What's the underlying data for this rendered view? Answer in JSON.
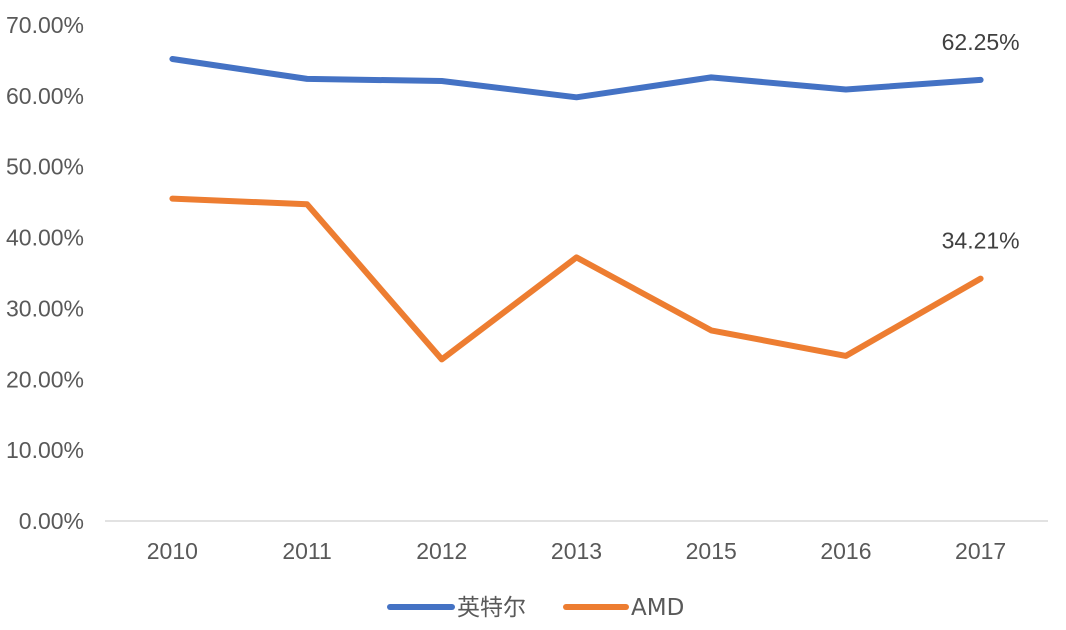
{
  "chart_data": {
    "type": "line",
    "title": "",
    "xlabel": "",
    "ylabel": "",
    "categories": [
      "2010",
      "2011",
      "2012",
      "2013",
      "2015",
      "2016",
      "2017"
    ],
    "yticks": [
      "0.00%",
      "10.00%",
      "20.00%",
      "30.00%",
      "40.00%",
      "50.00%",
      "60.00%",
      "70.00%"
    ],
    "ylim": [
      0,
      70
    ],
    "grid": false,
    "legend_position": "bottom",
    "series": [
      {
        "name": "英特尔",
        "color": "#4472C4",
        "values": [
          65.2,
          62.4,
          62.1,
          59.8,
          62.6,
          60.9,
          62.25
        ],
        "end_label": "62.25%"
      },
      {
        "name": "AMD",
        "color": "#ED7D31",
        "values": [
          45.5,
          44.7,
          22.8,
          37.2,
          26.9,
          23.3,
          34.21
        ],
        "end_label": "34.21%"
      }
    ]
  }
}
